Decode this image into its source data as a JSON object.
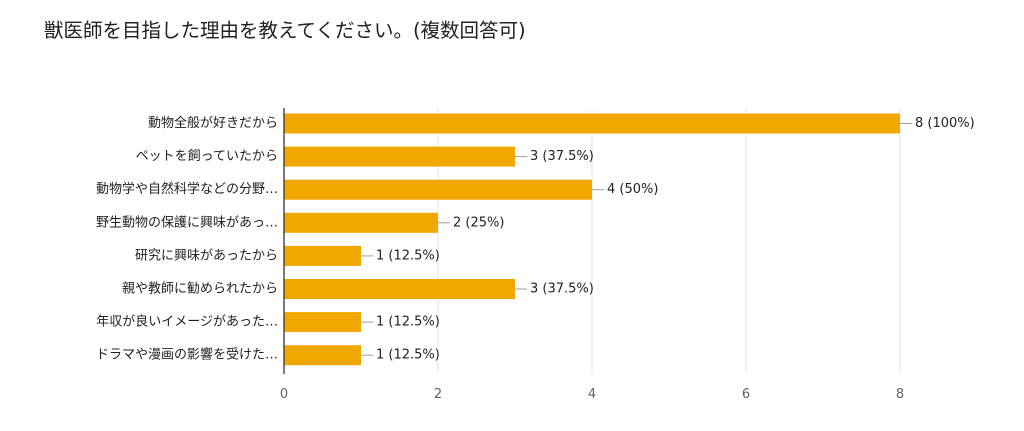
{
  "chart_data": {
    "type": "bar",
    "orientation": "horizontal",
    "title": "獣医師を目指した理由を教えてください。(複数回答可)",
    "xlabel": "",
    "ylabel": "",
    "xlim": [
      0,
      8
    ],
    "x_ticks": [
      "0",
      "2",
      "4",
      "6",
      "8"
    ],
    "grid": true,
    "legend": "none",
    "bar_color": "#f0a800",
    "categories": [
      "動物全般が好きだから",
      "ペットを飼っていたから",
      "動物学や自然科学などの分野…",
      "野生動物の保護に興味があっ…",
      "研究に興味があったから",
      "親や教師に勧められたから",
      "年収が良いイメージがあった…",
      "ドラマや漫画の影響を受けた…"
    ],
    "values": [
      8,
      3,
      4,
      2,
      1,
      3,
      1,
      1
    ],
    "data_labels": [
      "8 (100%)",
      "3 (37.5%)",
      "4 (50%)",
      "2 (25%)",
      "1 (12.5%)",
      "3 (37.5%)",
      "1 (12.5%)",
      "1 (12.5%)"
    ]
  }
}
